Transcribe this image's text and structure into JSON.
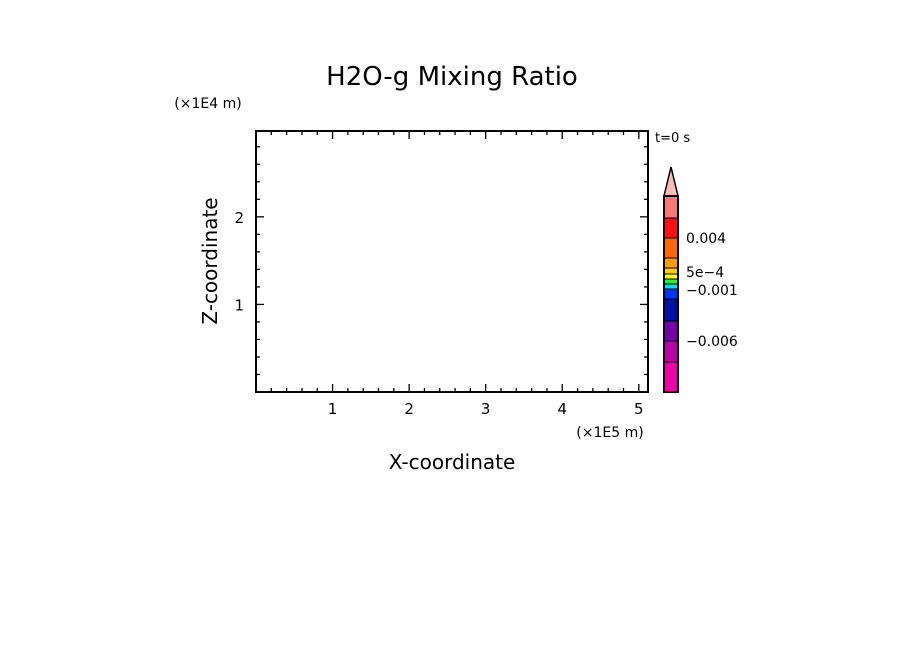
{
  "chart_data": {
    "type": "heatmap",
    "title": "H2O-g Mixing Ratio",
    "xlabel": "X-coordinate",
    "ylabel": "Z-coordinate",
    "x_scale_label": "(×1E5 m)",
    "y_scale_label": "(×1E4 m)",
    "time_label": "t=0 s",
    "xlim": [
      0,
      5.12
    ],
    "ylim": [
      0,
      2.98
    ],
    "x_ticks": [
      "1",
      "2",
      "3",
      "4",
      "5"
    ],
    "y_ticks": [
      "1",
      "2"
    ],
    "grid": false,
    "values": [],
    "colorbar": {
      "colors_top_to_bottom": [
        "#f87878",
        "#ff1010",
        "#ff6600",
        "#ff9900",
        "#ffcc00",
        "#ffff00",
        "#22ee44",
        "#00ddff",
        "#0033ff",
        "#0011aa",
        "#7700aa",
        "#bb00aa",
        "#ee00aa"
      ],
      "overflow_color": "#ffbbbb",
      "labels": [
        "0.004",
        "5e-4",
        "-0.001",
        "-0.006"
      ]
    }
  }
}
